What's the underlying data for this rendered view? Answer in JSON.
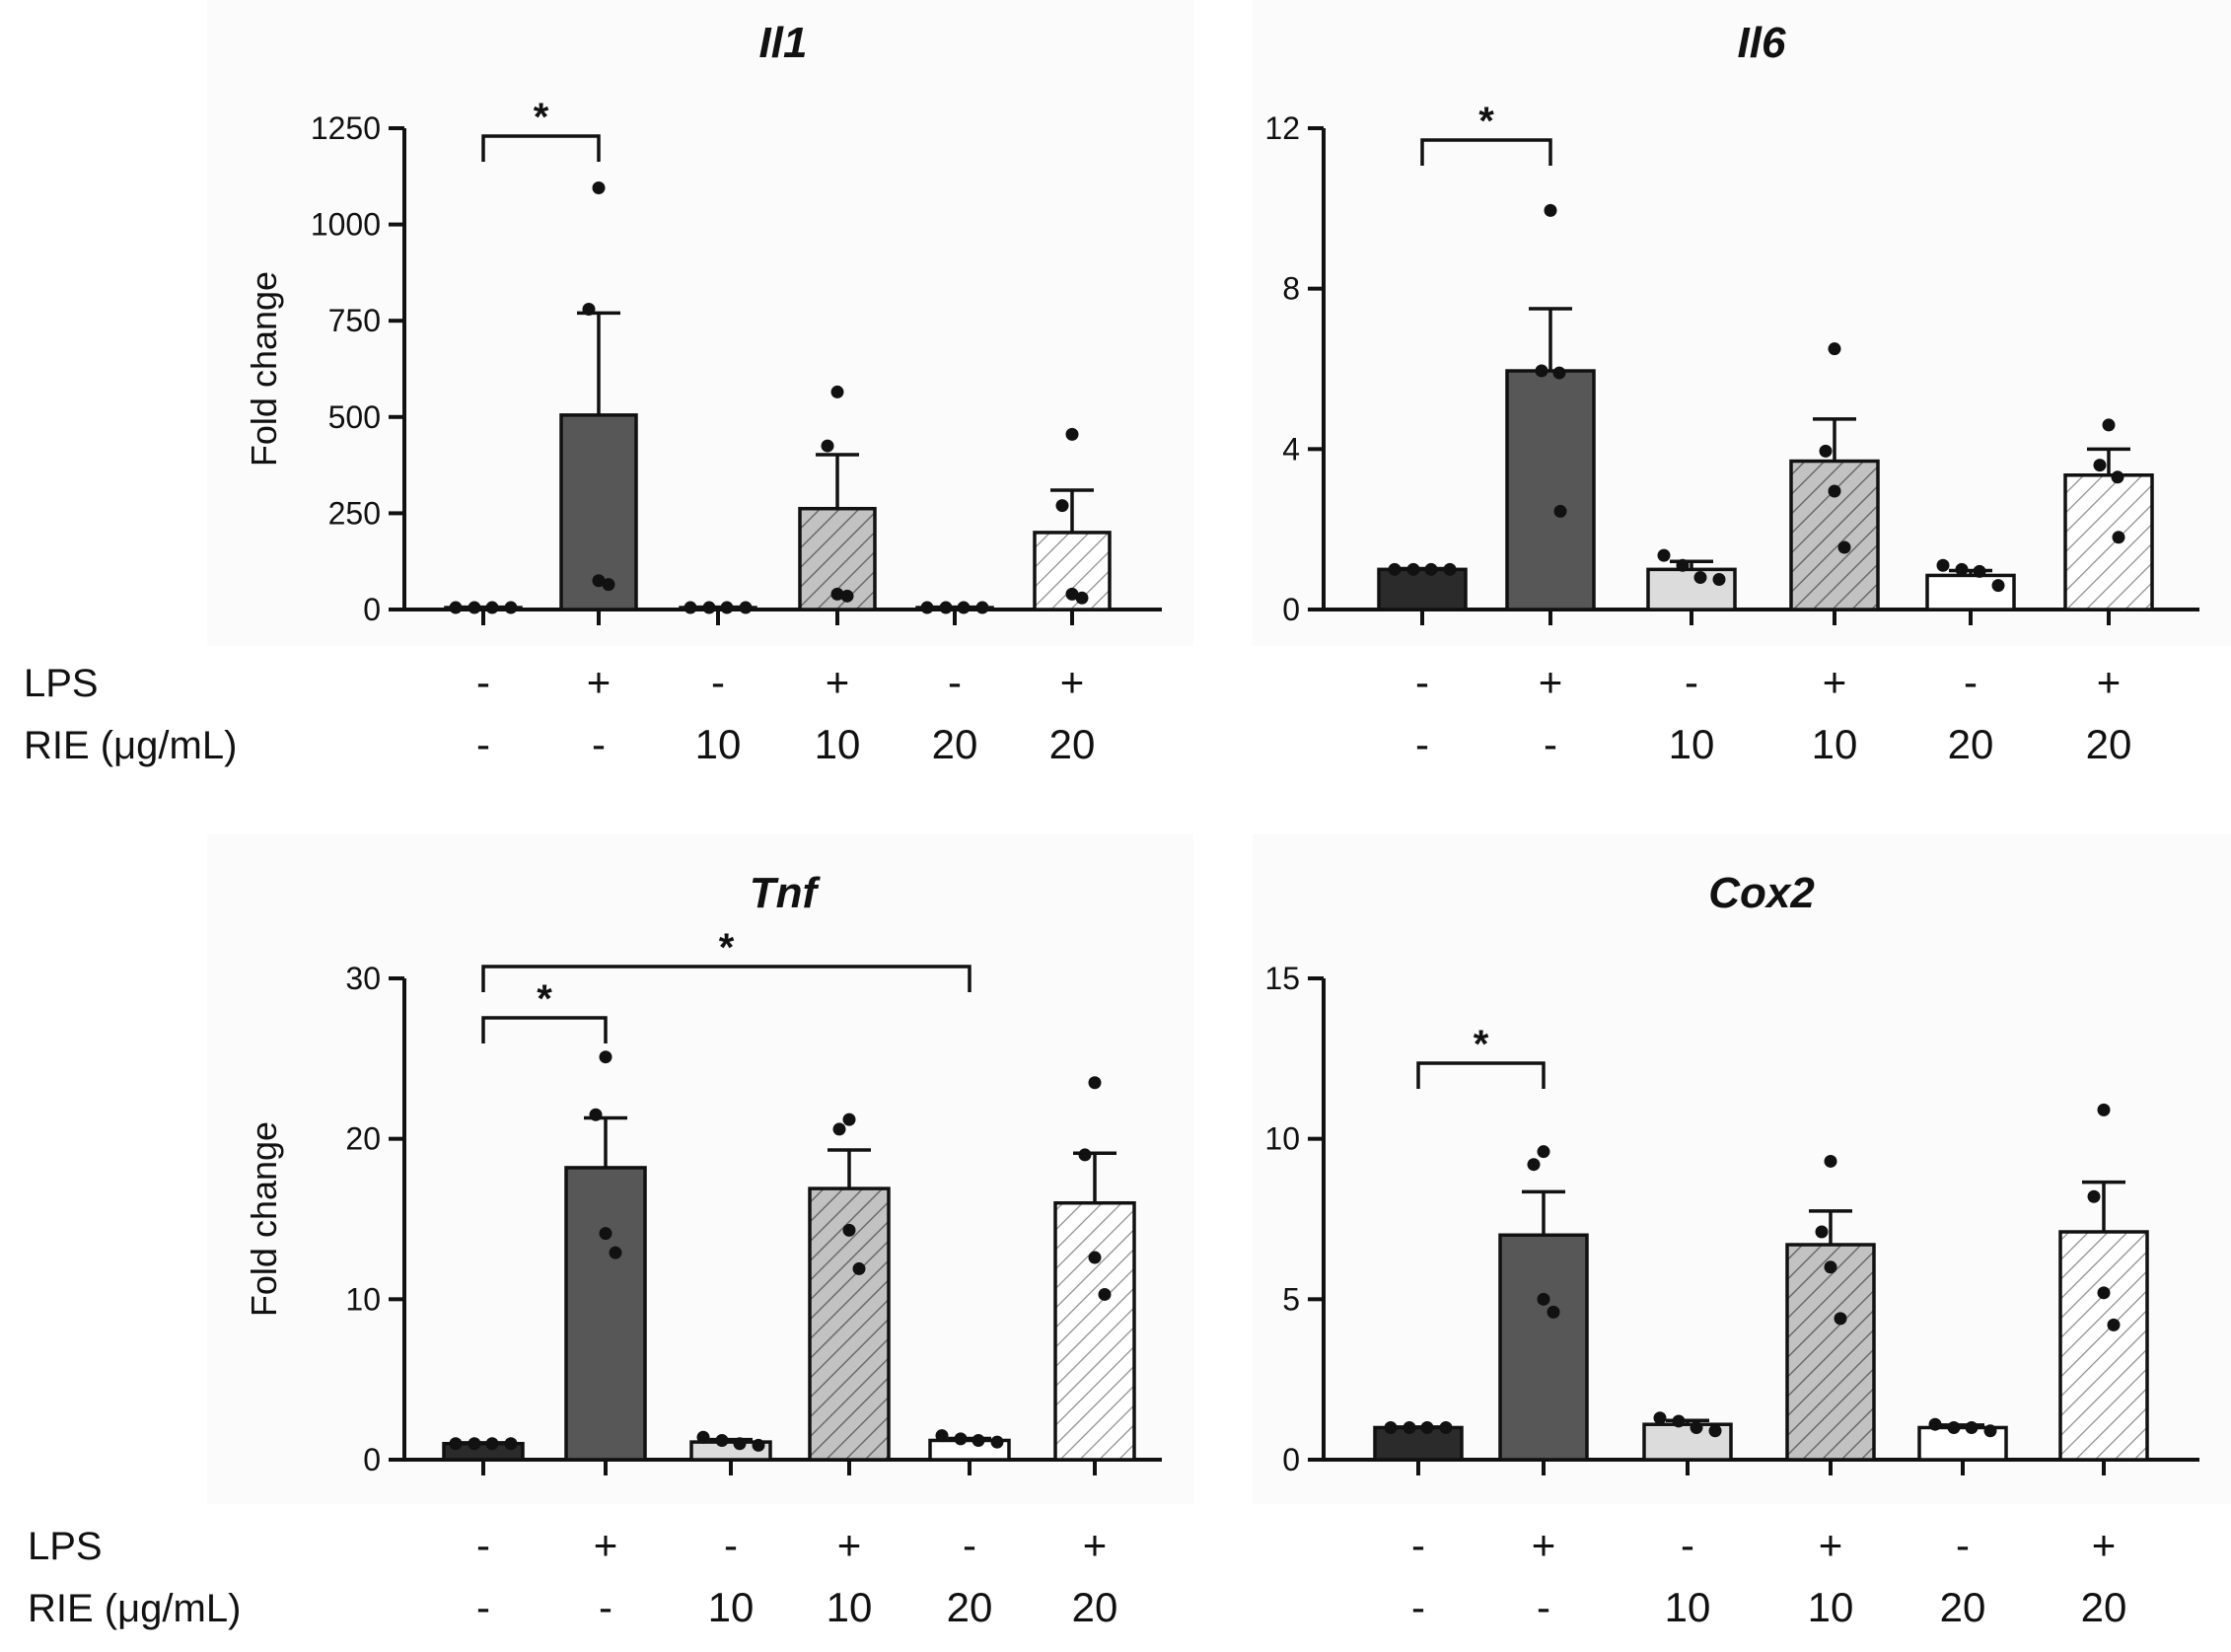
{
  "chart_data": [
    {
      "type": "bar",
      "title": "Il1",
      "ylabel": "Fold change",
      "ylim": [
        0,
        1250
      ],
      "yticks": [
        0,
        250,
        500,
        750,
        1000,
        1250
      ],
      "ytick_labels": [
        "0",
        "250",
        "500",
        "750",
        "1000",
        "1250"
      ],
      "condition_rows": [
        {
          "label": "LPS",
          "values": [
            "-",
            "+",
            "-",
            "+",
            "-",
            "+"
          ]
        },
        {
          "label": "RIE (μg/mL)",
          "values": [
            "-",
            "-",
            "10",
            "10",
            "20",
            "20"
          ]
        }
      ],
      "values": [
        5,
        505,
        5,
        262,
        5,
        200
      ],
      "errors": [
        1,
        265,
        1,
        140,
        1,
        110
      ],
      "points": [
        [
          5,
          5,
          5,
          5
        ],
        [
          1095,
          780,
          75,
          65
        ],
        [
          5,
          5,
          5,
          5
        ],
        [
          565,
          425,
          40,
          35
        ],
        [
          5,
          5,
          5,
          5
        ],
        [
          455,
          270,
          40,
          30
        ]
      ],
      "significance": [
        {
          "from": 0,
          "to": 1,
          "label": "*"
        }
      ]
    },
    {
      "type": "bar",
      "title": "Il6",
      "ylabel": "",
      "ylim": [
        0,
        12
      ],
      "yticks": [
        0,
        4,
        8,
        12
      ],
      "ytick_labels": [
        "0",
        "4",
        "8",
        "12"
      ],
      "condition_rows": [
        {
          "label": "",
          "values": [
            "-",
            "+",
            "-",
            "+",
            "-",
            "+"
          ]
        },
        {
          "label": "",
          "values": [
            "-",
            "-",
            "10",
            "10",
            "20",
            "20"
          ]
        }
      ],
      "values": [
        1.0,
        5.95,
        1.0,
        3.7,
        0.85,
        3.35
      ],
      "errors": [
        0.02,
        1.55,
        0.2,
        1.05,
        0.12,
        0.65
      ],
      "points": [
        [
          1,
          1,
          1,
          1
        ],
        [
          9.95,
          5.95,
          5.9,
          2.45
        ],
        [
          1.35,
          1.1,
          0.8,
          0.75
        ],
        [
          6.5,
          3.95,
          2.95,
          1.55
        ],
        [
          1.1,
          1.0,
          0.95,
          0.6
        ],
        [
          4.6,
          3.6,
          3.3,
          1.8
        ]
      ],
      "significance": [
        {
          "from": 0,
          "to": 1,
          "label": "*"
        }
      ]
    },
    {
      "type": "bar",
      "title": "Tnf",
      "ylabel": "Fold change",
      "ylim": [
        0,
        30
      ],
      "yticks": [
        0,
        10,
        20,
        30
      ],
      "ytick_labels": [
        "0",
        "10",
        "20",
        "30"
      ],
      "condition_rows": [
        {
          "label": "LPS",
          "values": [
            "-",
            "+",
            "-",
            "+",
            "-",
            "+"
          ]
        },
        {
          "label": "RIE (μg/mL)",
          "values": [
            "-",
            "-",
            "10",
            "10",
            "20",
            "20"
          ]
        }
      ],
      "values": [
        1.0,
        18.2,
        1.1,
        16.9,
        1.2,
        16.0
      ],
      "errors": [
        0.05,
        3.1,
        0.15,
        2.4,
        0.12,
        3.1
      ],
      "points": [
        [
          1,
          1,
          1,
          1
        ],
        [
          25.1,
          21.5,
          14.1,
          12.9
        ],
        [
          1.4,
          1.2,
          1.0,
          0.9
        ],
        [
          21.2,
          20.6,
          14.3,
          11.9
        ],
        [
          1.5,
          1.3,
          1.2,
          1.1
        ],
        [
          23.5,
          19.0,
          12.6,
          10.3
        ]
      ],
      "significance": [
        {
          "from": 0,
          "to": 1,
          "label": "*"
        },
        {
          "from": 0,
          "to": 4,
          "label": "*"
        }
      ]
    },
    {
      "type": "bar",
      "title": "Cox2",
      "ylabel": "",
      "ylim": [
        0,
        15
      ],
      "yticks": [
        0,
        5,
        10,
        15
      ],
      "ytick_labels": [
        "0",
        "5",
        "10",
        "15"
      ],
      "condition_rows": [
        {
          "label": "",
          "values": [
            "-",
            "+",
            "-",
            "+",
            "-",
            "+"
          ]
        },
        {
          "label": "",
          "values": [
            "-",
            "-",
            "10",
            "10",
            "20",
            "20"
          ]
        }
      ],
      "values": [
        1.0,
        7.0,
        1.1,
        6.7,
        1.0,
        7.1
      ],
      "errors": [
        0.02,
        1.35,
        0.12,
        1.05,
        0.08,
        1.55
      ],
      "points": [
        [
          1,
          1,
          1,
          1
        ],
        [
          9.6,
          9.2,
          5.0,
          4.6
        ],
        [
          1.3,
          1.2,
          1.0,
          0.9
        ],
        [
          9.3,
          7.1,
          6.0,
          4.4
        ],
        [
          1.1,
          1.0,
          1.0,
          0.9
        ],
        [
          10.9,
          8.2,
          5.2,
          4.2
        ]
      ],
      "significance": [
        {
          "from": 0,
          "to": 1,
          "label": "*"
        }
      ]
    }
  ]
}
